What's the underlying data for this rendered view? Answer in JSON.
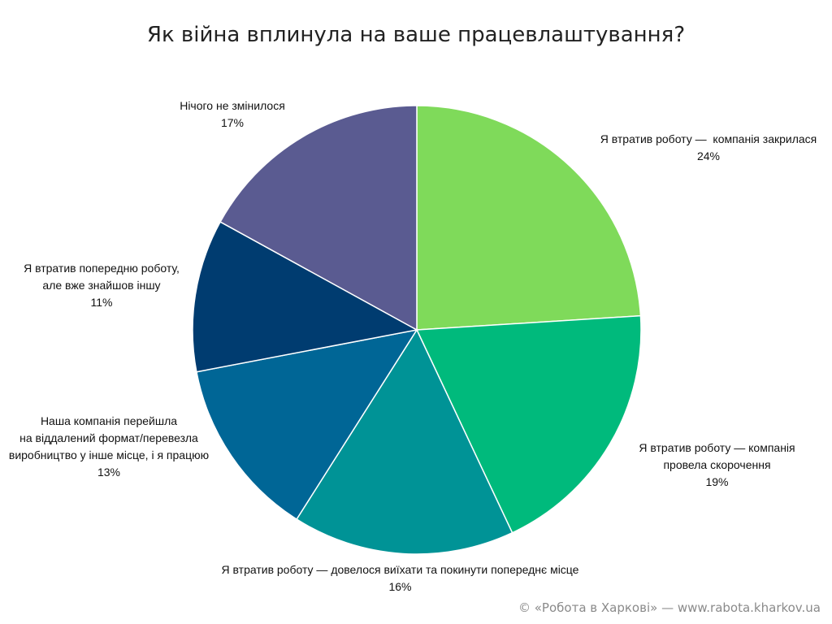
{
  "chart_data": {
    "type": "pie",
    "title": "Як війна вплинула на ваше працевлаштування?",
    "categories": [
      "Я втратив роботу —  компанія закрилася",
      "Я втратив роботу — компанія\nпровела скорочення",
      "Я втратив роботу — довелося виїхати та покинути попереднє місце",
      "Наша компанія перейшла\nна віддалений формат/перевезла\nвиробництво у інше місце, і я працюю",
      "Я втратив попередню роботу,\nале вже знайшов іншу",
      "Нічого не змінилося"
    ],
    "values": [
      24,
      19,
      16,
      13,
      11,
      17
    ],
    "data_labels": [
      "24%",
      "19%",
      "16%",
      "13%",
      "11%",
      "17%"
    ],
    "colors": [
      "#7fda5a",
      "#00ba7c",
      "#009396",
      "#006696",
      "#003c70",
      "#5a5b91"
    ],
    "legend": "none"
  },
  "footer": {
    "copyright": "© «Робота в Харкові» — www.rabota.kharkov.ua"
  }
}
